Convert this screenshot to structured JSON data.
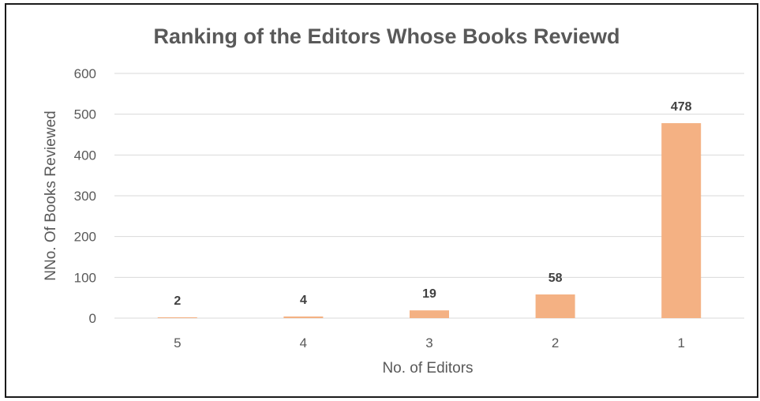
{
  "chart_data": {
    "type": "bar",
    "title": "Ranking of the Editors Whose Books Reviewd",
    "xlabel": "No. of Editors",
    "ylabel": "NNo. Of Books Reviewed",
    "categories": [
      "5",
      "4",
      "3",
      "2",
      "1"
    ],
    "values": [
      2,
      4,
      19,
      58,
      478
    ],
    "data_labels": [
      "2",
      "4",
      "19",
      "58",
      "478"
    ],
    "ylim": [
      0,
      600
    ],
    "yticks": [
      "0",
      "100",
      "200",
      "300",
      "400",
      "500",
      "600"
    ],
    "grid": true,
    "legend": "none",
    "bar_color": "#f4b183"
  }
}
